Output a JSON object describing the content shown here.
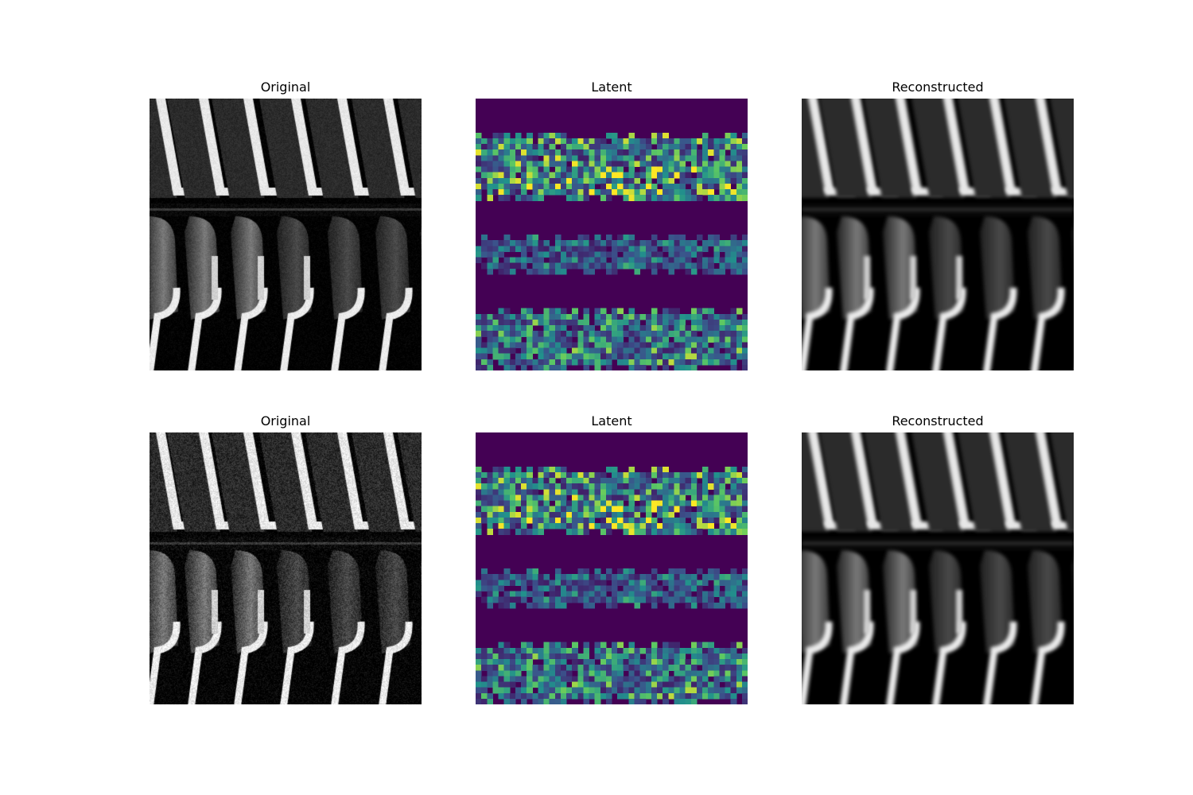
{
  "figure": {
    "panels": [
      {
        "id": "r1c1",
        "title": "Original",
        "kind": "grayscale",
        "variant": "sharp"
      },
      {
        "id": "r1c2",
        "title": "Latent",
        "kind": "latent-grid",
        "colormap": "viridis"
      },
      {
        "id": "r1c3",
        "title": "Reconstructed",
        "kind": "grayscale",
        "variant": "blurred"
      },
      {
        "id": "r2c1",
        "title": "Original",
        "kind": "grayscale",
        "variant": "sharp-noisy"
      },
      {
        "id": "r2c2",
        "title": "Latent",
        "kind": "latent-grid",
        "colormap": "viridis"
      },
      {
        "id": "r2c3",
        "title": "Reconstructed",
        "kind": "grayscale",
        "variant": "blurred"
      }
    ],
    "colors": {
      "viridis_low": "#440154",
      "viridis_mid": "#21918c",
      "viridis_high": "#fde725",
      "background": "#ffffff"
    }
  }
}
